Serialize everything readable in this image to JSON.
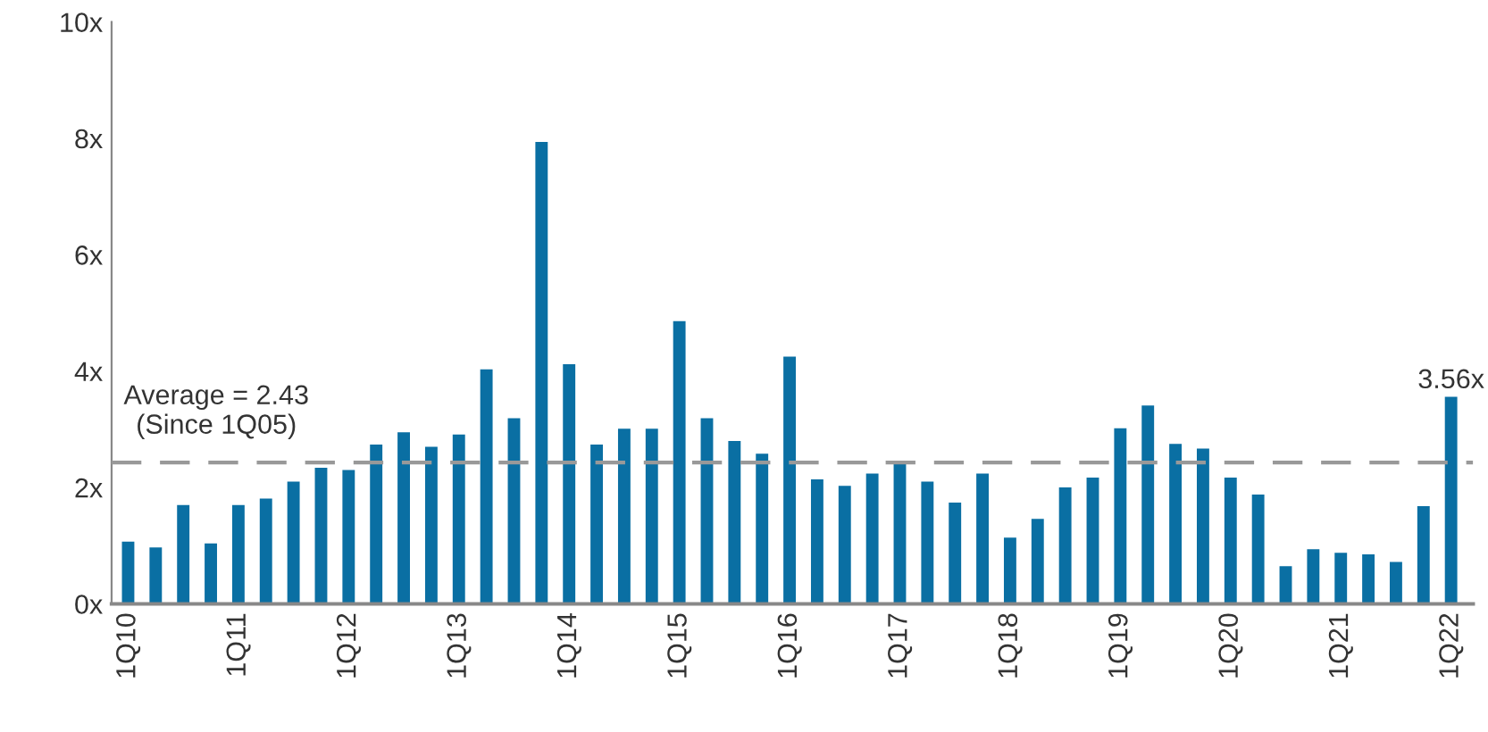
{
  "chart_data": {
    "type": "bar",
    "categories": [
      "1Q10",
      null,
      null,
      null,
      "1Q11",
      null,
      null,
      null,
      "1Q12",
      null,
      null,
      null,
      "1Q13",
      null,
      null,
      null,
      "1Q14",
      null,
      null,
      null,
      "1Q15",
      null,
      null,
      null,
      "1Q16",
      null,
      null,
      null,
      "1Q17",
      null,
      null,
      null,
      "1Q18",
      null,
      null,
      null,
      "1Q19",
      null,
      null,
      null,
      "1Q20",
      null,
      null,
      null,
      "1Q21",
      null,
      null,
      null,
      "1Q22"
    ],
    "values": [
      1.07,
      0.97,
      1.7,
      1.04,
      1.7,
      1.81,
      2.1,
      2.34,
      2.3,
      2.74,
      2.95,
      2.7,
      2.91,
      4.03,
      3.19,
      7.94,
      4.12,
      2.74,
      3.01,
      3.01,
      4.86,
      3.19,
      2.8,
      2.58,
      4.25,
      2.14,
      2.03,
      2.24,
      2.41,
      2.1,
      1.74,
      2.24,
      1.14,
      1.46,
      2.0,
      2.17,
      3.02,
      3.41,
      2.75,
      2.67,
      2.17,
      1.88,
      0.65,
      0.94,
      0.88,
      0.85,
      0.72,
      1.68,
      3.56
    ],
    "value_labels": [
      null,
      null,
      null,
      null,
      null,
      null,
      null,
      null,
      null,
      null,
      null,
      null,
      null,
      null,
      null,
      null,
      null,
      null,
      null,
      null,
      null,
      null,
      null,
      null,
      null,
      null,
      null,
      null,
      null,
      null,
      null,
      null,
      null,
      null,
      null,
      null,
      null,
      null,
      null,
      null,
      null,
      null,
      null,
      null,
      null,
      null,
      null,
      null,
      "3.56x"
    ],
    "color": "#0a6fa3",
    "ylim": [
      0,
      10
    ],
    "yticks": [
      {
        "value": 0,
        "label": "0x"
      },
      {
        "value": 2,
        "label": "2x"
      },
      {
        "value": 4,
        "label": "4x"
      },
      {
        "value": 6,
        "label": "6x"
      },
      {
        "value": 8,
        "label": "8x"
      },
      {
        "value": 10,
        "label": "10x"
      }
    ],
    "ref_lines": [
      {
        "axis": "y",
        "value": 2.43,
        "label": "Average = 2.43\n(Since 1Q05)",
        "color": "#999999",
        "line_style": "dashed"
      }
    ],
    "grid": false,
    "legend": false
  }
}
